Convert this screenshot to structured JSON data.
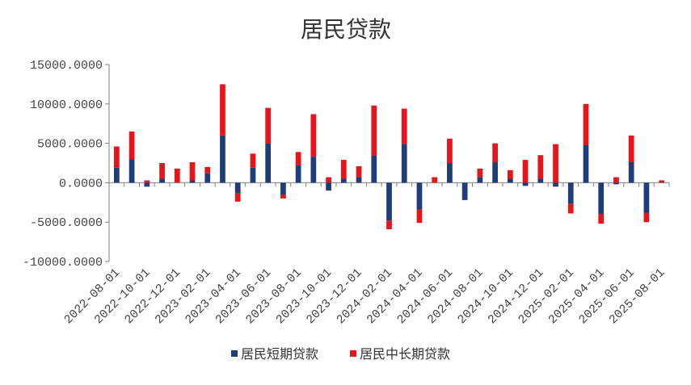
{
  "chart_data": {
    "type": "bar",
    "stacked": true,
    "title": "居民贷款",
    "xlabel": "",
    "ylabel": "",
    "ylim": [
      -10000,
      15000
    ],
    "yticks": [
      15000,
      10000,
      5000,
      0,
      -5000,
      -10000
    ],
    "ytick_labels": [
      "15000.0000",
      "10000.0000",
      "5000.0000",
      "0.0000",
      "-5000.0000",
      "-10000.0000"
    ],
    "categories": [
      "2022-08-01",
      "2022-09-01",
      "2022-10-01",
      "2022-11-01",
      "2022-12-01",
      "2023-01-01",
      "2023-02-01",
      "2023-03-01",
      "2023-04-01",
      "2023-05-01",
      "2023-06-01",
      "2023-07-01",
      "2023-08-01",
      "2023-09-01",
      "2023-10-01",
      "2023-11-01",
      "2023-12-01",
      "2024-01-01",
      "2024-02-01",
      "2024-03-01",
      "2024-04-01",
      "2024-05-01",
      "2024-06-01",
      "2024-07-01",
      "2024-08-01",
      "2024-09-01",
      "2024-10-01",
      "2024-11-01",
      "2024-12-01",
      "2025-01-01",
      "2025-02-01",
      "2025-03-01",
      "2025-04-01",
      "2025-05-01",
      "2025-06-01",
      "2025-07-01",
      "2025-08-01"
    ],
    "x_tick_labels": [
      "2022-08-01",
      "2022-10-01",
      "2022-12-01",
      "2023-02-01",
      "2023-04-01",
      "2023-06-01",
      "2023-08-01",
      "2023-10-01",
      "2023-12-01",
      "2024-02-01",
      "2024-04-01",
      "2024-06-01",
      "2024-08-01",
      "2024-10-01",
      "2024-12-01",
      "2025-02-01",
      "2025-04-01",
      "2025-06-01",
      "2025-08-01"
    ],
    "series": [
      {
        "name": "居民短期贷款",
        "color": "#1f3d7a",
        "values": [
          1900,
          3000,
          -500,
          500,
          0,
          300,
          1200,
          6000,
          -1300,
          1900,
          5000,
          -1500,
          2200,
          3300,
          -1000,
          500,
          700,
          3500,
          -4800,
          4900,
          -3400,
          0,
          2500,
          -2200,
          700,
          2600,
          500,
          -400,
          500,
          -500,
          -2700,
          4800,
          -4000,
          -200,
          2600,
          -3800,
          0
        ]
      },
      {
        "name": "居民中长期贷款",
        "color": "#e8141b",
        "values": [
          2700,
          3500,
          300,
          2000,
          1800,
          2300,
          800,
          6500,
          -1100,
          1800,
          4500,
          -500,
          1700,
          5400,
          700,
          2400,
          1400,
          6300,
          -1100,
          4500,
          -1700,
          700,
          3100,
          0,
          1100,
          2400,
          1100,
          2900,
          3000,
          4900,
          -1200,
          5200,
          -1200,
          700,
          3400,
          -1200,
          300
        ]
      }
    ],
    "grid": false,
    "legend_position": "bottom"
  }
}
